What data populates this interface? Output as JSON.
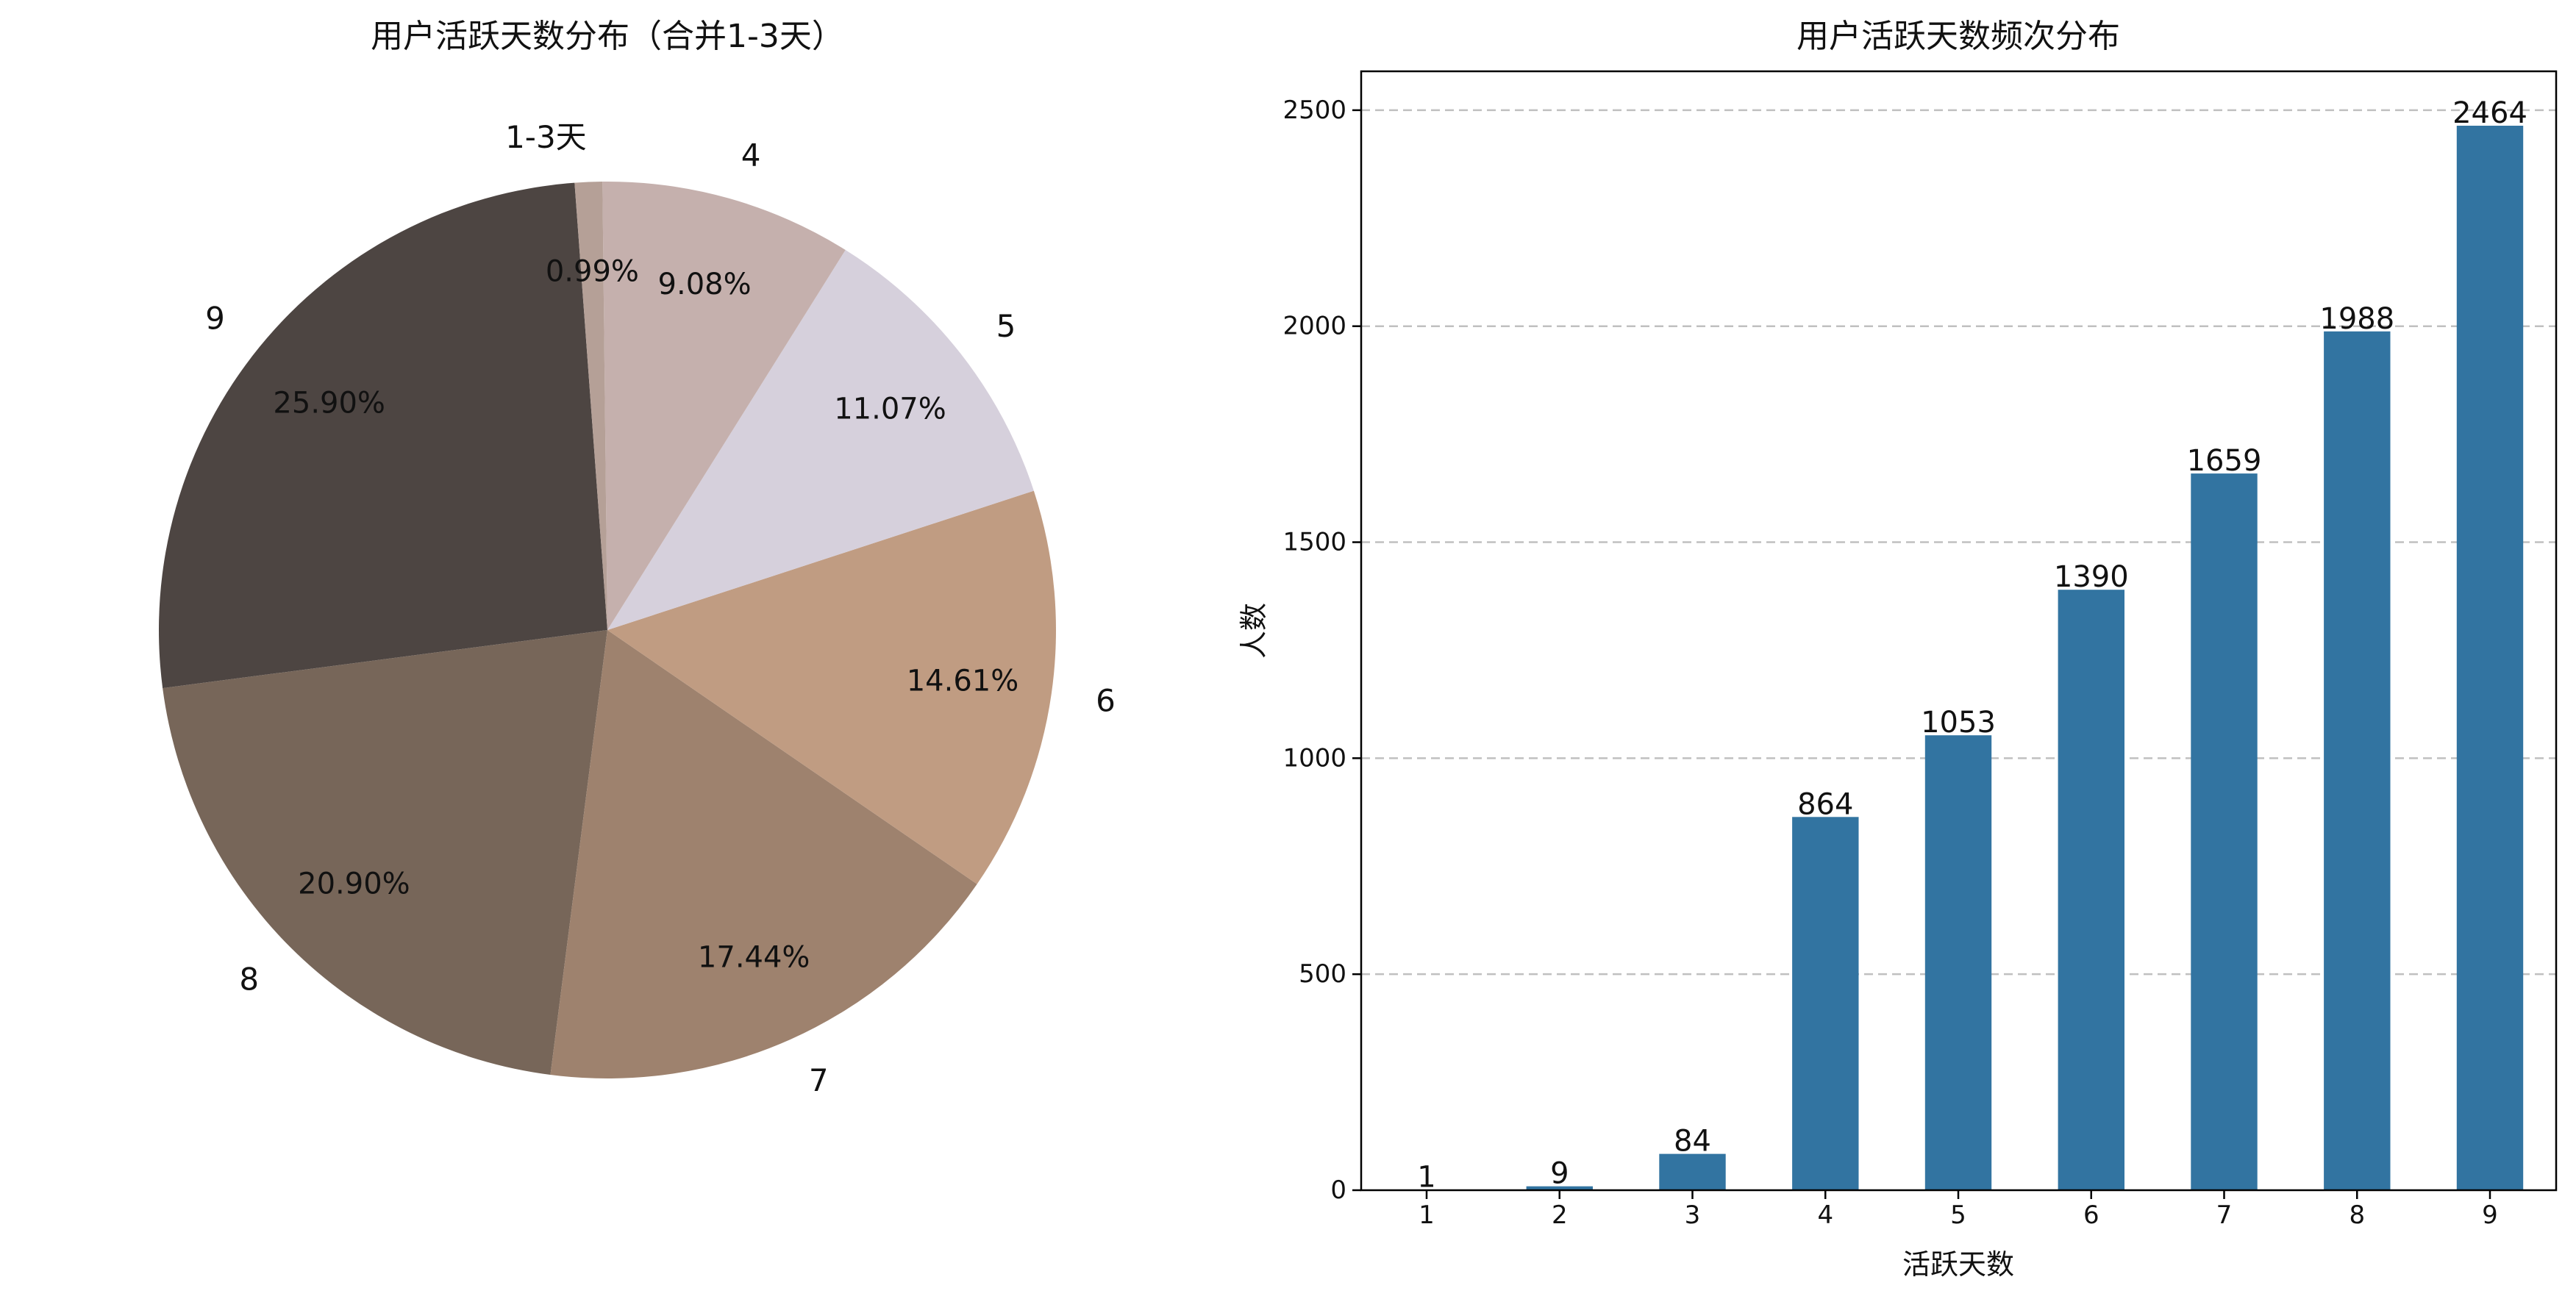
{
  "chart_data": [
    {
      "type": "pie",
      "title": "用户活跃天数分布（合并1-3天）",
      "slices": [
        {
          "label": "9",
          "percent": 25.9,
          "pct_label": "25.90%",
          "color": "#4d4542"
        },
        {
          "label": "8",
          "percent": 20.9,
          "pct_label": "20.90%",
          "color": "#776659"
        },
        {
          "label": "7",
          "percent": 17.44,
          "pct_label": "17.44%",
          "color": "#9e826e"
        },
        {
          "label": "6",
          "percent": 14.61,
          "pct_label": "14.61%",
          "color": "#c09c82"
        },
        {
          "label": "5",
          "percent": 11.07,
          "pct_label": "11.07%",
          "color": "#d6d0dc"
        },
        {
          "label": "4",
          "percent": 9.08,
          "pct_label": "9.08%",
          "color": "#c5b0ad"
        },
        {
          "label": "1-3天",
          "percent": 0.99,
          "pct_label": "0.99%",
          "color": "#b5a097"
        }
      ]
    },
    {
      "type": "bar",
      "title": "用户活跃天数频次分布",
      "xlabel": "活跃天数",
      "ylabel": "人数",
      "categories": [
        "1",
        "2",
        "3",
        "4",
        "5",
        "6",
        "7",
        "8",
        "9"
      ],
      "values": [
        1,
        9,
        84,
        864,
        1053,
        1390,
        1659,
        1988,
        2464
      ],
      "ylim": [
        0,
        2590
      ],
      "yticks": [
        0,
        500,
        1000,
        1500,
        2000,
        2500
      ],
      "grid": "y-dashed",
      "bar_color": "#3274a1"
    }
  ]
}
